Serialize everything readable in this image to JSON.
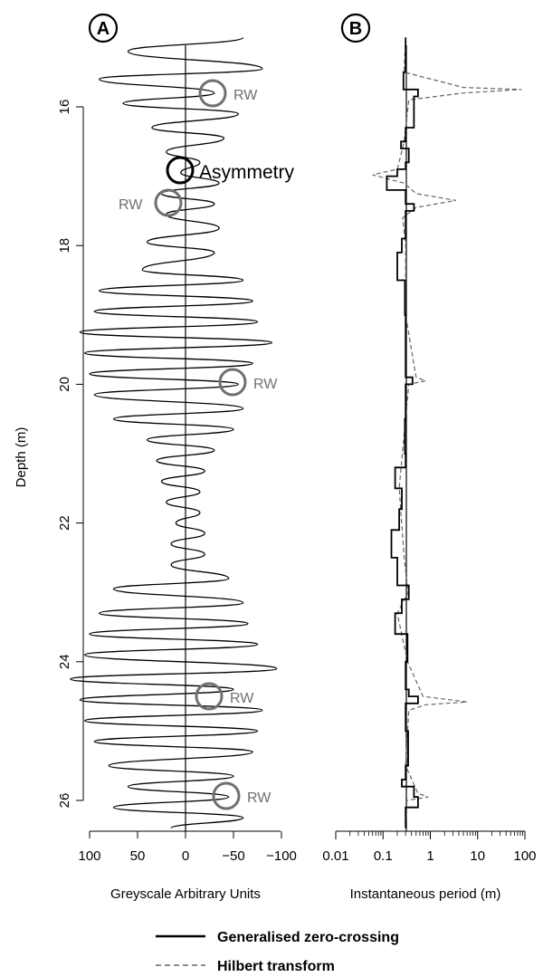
{
  "panel_a_label": "A",
  "panel_b_label": "B",
  "y_axis_label": "Depth (m)",
  "y_ticks": [
    "16",
    "18",
    "20",
    "22",
    "24",
    "26"
  ],
  "panel_a_xlabel": "Greyscale Arbitrary Units",
  "panel_a_xticks": [
    "100",
    "50",
    "0",
    "−50",
    "−100"
  ],
  "panel_b_xlabel": "Instantaneous period (m)",
  "panel_b_xticks": [
    "0.01",
    "0.1",
    "1",
    "10",
    "100"
  ],
  "legend": {
    "zero_crossing": "Generalised zero-crossing",
    "hilbert": "Hilbert transform"
  },
  "annotations": {
    "rw": "RW",
    "asymmetry": "Asymmetry"
  },
  "colors": {
    "signal": "#000000",
    "annotation": "#707070",
    "hilbert": "#666666"
  },
  "chart_data": [
    {
      "type": "line",
      "panel": "A",
      "xlabel": "Greyscale Arbitrary Units",
      "ylabel": "Depth (m)",
      "xlim": [
        100,
        -100
      ],
      "ylim": [
        26.5,
        15
      ],
      "x_reversed": true,
      "y_reversed": true,
      "series": [
        {
          "depth": [
            15.0,
            15.2,
            15.45,
            15.6,
            15.8,
            15.95,
            16.1,
            16.3,
            16.45,
            16.65,
            16.8,
            16.95,
            17.1,
            17.25,
            17.4,
            17.55,
            17.75,
            17.95,
            18.1,
            18.35,
            18.5,
            18.65,
            18.8,
            18.95,
            19.1,
            19.25,
            19.4,
            19.55,
            19.7,
            19.85,
            20.0,
            20.15,
            20.35,
            20.5,
            20.65,
            20.8,
            20.95,
            21.1,
            21.25,
            21.4,
            21.55,
            21.7,
            21.85,
            22.0,
            22.15,
            22.3,
            22.45,
            22.6,
            22.8,
            22.95,
            23.15,
            23.3,
            23.45,
            23.6,
            23.75,
            23.9,
            24.1,
            24.25,
            24.4,
            24.55,
            24.7,
            24.85,
            25.0,
            25.15,
            25.3,
            25.5,
            25.65,
            25.8,
            25.95,
            26.1,
            26.25,
            26.4
          ],
          "greyscale": [
            -60,
            60,
            -80,
            90,
            -30,
            65,
            -55,
            35,
            -40,
            20,
            -15,
            5,
            -35,
            25,
            -30,
            20,
            -35,
            40,
            -30,
            45,
            -60,
            90,
            -70,
            95,
            -75,
            110,
            -90,
            105,
            -70,
            100,
            -55,
            95,
            -60,
            75,
            -50,
            40,
            -30,
            30,
            -20,
            25,
            -15,
            20,
            -15,
            10,
            -20,
            15,
            -20,
            15,
            -45,
            75,
            -60,
            90,
            -65,
            100,
            -75,
            105,
            -95,
            120,
            -50,
            110,
            -80,
            105,
            -75,
            95,
            -70,
            80,
            -50,
            60,
            -45,
            75,
            -60,
            15
          ]
        }
      ]
    },
    {
      "type": "line",
      "panel": "B",
      "xlabel": "Instantaneous period (m)",
      "ylabel": "Depth (m)",
      "x_scale": "log",
      "xlim": [
        0.01,
        100
      ],
      "ylim": [
        26.5,
        15
      ],
      "y_reversed": true,
      "series": [
        {
          "name": "Generalised zero-crossing",
          "depth": [
            15.0,
            15.5,
            15.75,
            15.85,
            16.3,
            16.5,
            16.6,
            16.8,
            16.9,
            17.0,
            17.2,
            17.4,
            17.5,
            17.9,
            18.1,
            18.5,
            19.0,
            19.8,
            19.9,
            20.0,
            20.5,
            21.0,
            21.2,
            21.5,
            21.8,
            22.1,
            22.5,
            22.9,
            23.1,
            23.3,
            23.6,
            24.0,
            24.4,
            24.5,
            24.6,
            25.0,
            25.5,
            25.7,
            25.8,
            25.95,
            26.1,
            26.4
          ],
          "period": [
            0.3,
            0.27,
            0.55,
            0.45,
            0.3,
            0.24,
            0.35,
            0.3,
            0.2,
            0.12,
            0.3,
            0.45,
            0.3,
            0.25,
            0.2,
            0.29,
            0.3,
            0.3,
            0.42,
            0.3,
            0.29,
            0.3,
            0.18,
            0.25,
            0.22,
            0.15,
            0.2,
            0.35,
            0.25,
            0.18,
            0.33,
            0.3,
            0.35,
            0.55,
            0.3,
            0.34,
            0.3,
            0.25,
            0.45,
            0.55,
            0.3,
            0.3
          ]
        },
        {
          "name": "Hilbert transform",
          "depth": [
            15.0,
            15.5,
            15.72,
            15.75,
            15.8,
            15.9,
            16.5,
            16.9,
            16.98,
            17.1,
            17.25,
            17.35,
            17.45,
            17.6,
            18.0,
            19.0,
            19.9,
            19.95,
            20.0,
            20.5,
            21.5,
            22.5,
            23.0,
            23.3,
            24.0,
            24.5,
            24.58,
            24.62,
            24.7,
            25.5,
            25.9,
            25.95,
            26.0,
            26.4
          ],
          "period": [
            0.3,
            0.28,
            5,
            85,
            5,
            0.35,
            0.28,
            0.2,
            0.06,
            0.28,
            0.5,
            3.5,
            0.5,
            0.26,
            0.3,
            0.3,
            0.5,
            0.8,
            0.35,
            0.3,
            0.22,
            0.28,
            0.34,
            0.2,
            0.33,
            0.7,
            6,
            0.8,
            0.35,
            0.3,
            0.55,
            0.9,
            0.32,
            0.3
          ]
        }
      ]
    }
  ]
}
